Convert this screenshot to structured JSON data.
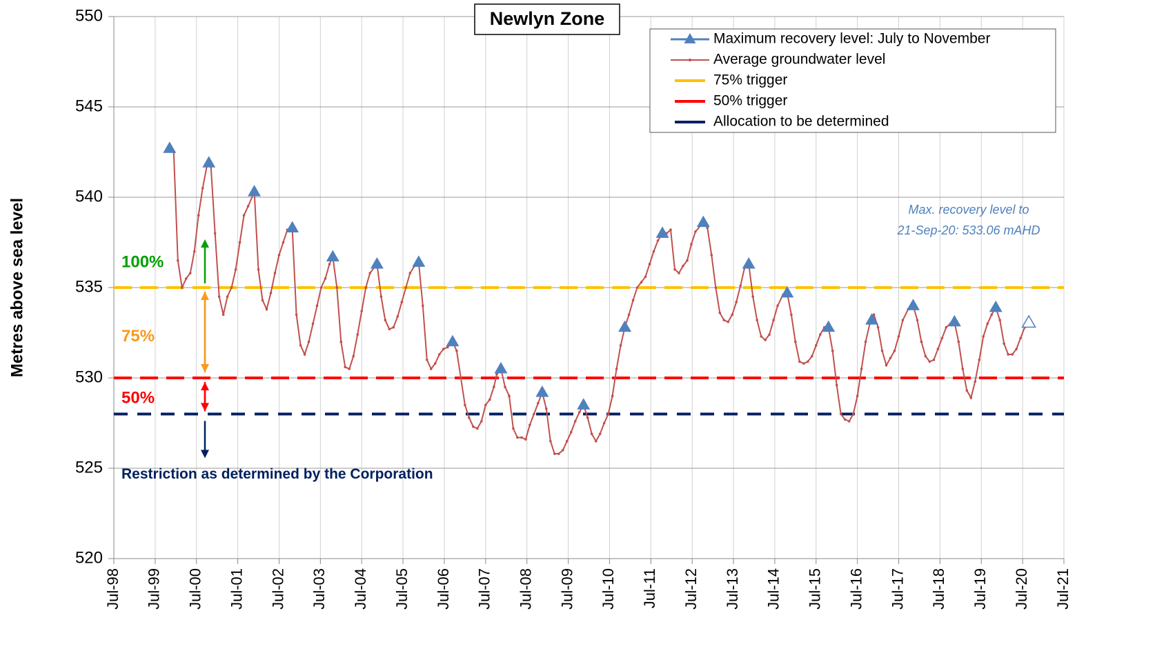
{
  "chart_data": {
    "type": "line",
    "title": "Newlyn Zone",
    "y_label": "Metres above sea level",
    "xlim": [
      1998.5,
      2021.5
    ],
    "xticks": [
      {
        "value": 1998.5,
        "label": "Jul-98"
      },
      {
        "value": 1999.5,
        "label": "Jul-99"
      },
      {
        "value": 2000.5,
        "label": "Jul-00"
      },
      {
        "value": 2001.5,
        "label": "Jul-01"
      },
      {
        "value": 2002.5,
        "label": "Jul-02"
      },
      {
        "value": 2003.5,
        "label": "Jul-03"
      },
      {
        "value": 2004.5,
        "label": "Jul-04"
      },
      {
        "value": 2005.5,
        "label": "Jul-05"
      },
      {
        "value": 2006.5,
        "label": "Jul-06"
      },
      {
        "value": 2007.5,
        "label": "Jul-07"
      },
      {
        "value": 2008.5,
        "label": "Jul-08"
      },
      {
        "value": 2009.5,
        "label": "Jul-09"
      },
      {
        "value": 2010.5,
        "label": "Jul-10"
      },
      {
        "value": 2011.5,
        "label": "Jul-11"
      },
      {
        "value": 2012.5,
        "label": "Jul-12"
      },
      {
        "value": 2013.5,
        "label": "Jul-13"
      },
      {
        "value": 2014.5,
        "label": "Jul-14"
      },
      {
        "value": 2015.5,
        "label": "Jul-15"
      },
      {
        "value": 2016.5,
        "label": "Jul-16"
      },
      {
        "value": 2017.5,
        "label": "Jul-17"
      },
      {
        "value": 2018.5,
        "label": "Jul-18"
      },
      {
        "value": 2019.5,
        "label": "Jul-19"
      },
      {
        "value": 2020.5,
        "label": "Jul-20"
      },
      {
        "value": 2021.5,
        "label": "Jul-21"
      }
    ],
    "ylim": [
      520,
      550
    ],
    "yticks": [
      520,
      525,
      530,
      535,
      540,
      545,
      550
    ],
    "grid": true,
    "legend": "upper right",
    "series": [
      {
        "name": "Maximum recovery level: July to November",
        "color": "#4f81bd",
        "marker": "triangle",
        "x": [
          1999.85,
          2000.8,
          2001.9,
          2002.82,
          2003.8,
          2004.87,
          2005.88,
          2006.7,
          2007.87,
          2008.87,
          2009.87,
          2010.87,
          2011.78,
          2012.77,
          2013.87,
          2014.8,
          2015.8,
          2016.85,
          2017.85,
          2018.85,
          2019.85
        ],
        "values": [
          542.7,
          541.9,
          540.3,
          538.3,
          536.7,
          536.3,
          536.4,
          532.0,
          530.5,
          529.2,
          528.5,
          532.8,
          538.0,
          538.6,
          536.3,
          534.7,
          532.8,
          533.2,
          534.0,
          533.1,
          533.9
        ]
      },
      {
        "name": "Average groundwater level",
        "color": "#c0504d",
        "marker": "line",
        "x": [
          1999.85,
          1999.95,
          2000.05,
          2000.15,
          2000.25,
          2000.35,
          2000.45,
          2000.55,
          2000.65,
          2000.75,
          2000.85,
          2000.95,
          2001.05,
          2001.15,
          2001.25,
          2001.35,
          2001.45,
          2001.55,
          2001.65,
          2001.75,
          2001.9,
          2002.0,
          2002.1,
          2002.2,
          2002.3,
          2002.4,
          2002.5,
          2002.6,
          2002.7,
          2002.82,
          2002.92,
          2003.02,
          2003.12,
          2003.22,
          2003.32,
          2003.42,
          2003.52,
          2003.62,
          2003.72,
          2003.8,
          2003.9,
          2004.0,
          2004.1,
          2004.2,
          2004.3,
          2004.4,
          2004.5,
          2004.6,
          2004.7,
          2004.87,
          2004.97,
          2005.07,
          2005.17,
          2005.27,
          2005.37,
          2005.47,
          2005.57,
          2005.67,
          2005.78,
          2005.88,
          2005.98,
          2006.08,
          2006.18,
          2006.28,
          2006.38,
          2006.48,
          2006.58,
          2006.7,
          2006.8,
          2006.9,
          2007.0,
          2007.1,
          2007.2,
          2007.3,
          2007.4,
          2007.5,
          2007.6,
          2007.7,
          2007.77,
          2007.87,
          2007.97,
          2008.07,
          2008.17,
          2008.27,
          2008.37,
          2008.47,
          2008.57,
          2008.67,
          2008.77,
          2008.87,
          2008.97,
          2009.07,
          2009.17,
          2009.27,
          2009.37,
          2009.47,
          2009.57,
          2009.67,
          2009.77,
          2009.87,
          2009.97,
          2010.07,
          2010.17,
          2010.27,
          2010.37,
          2010.47,
          2010.57,
          2010.67,
          2010.77,
          2010.87,
          2010.97,
          2011.07,
          2011.17,
          2011.27,
          2011.37,
          2011.47,
          2011.57,
          2011.67,
          2011.78,
          2011.88,
          2011.98,
          2012.08,
          2012.18,
          2012.28,
          2012.38,
          2012.48,
          2012.58,
          2012.77,
          2012.87,
          2012.97,
          2013.07,
          2013.17,
          2013.27,
          2013.37,
          2013.47,
          2013.57,
          2013.67,
          2013.77,
          2013.87,
          2013.97,
          2014.07,
          2014.17,
          2014.27,
          2014.37,
          2014.47,
          2014.57,
          2014.7,
          2014.8,
          2014.9,
          2015.0,
          2015.1,
          2015.2,
          2015.3,
          2015.4,
          2015.5,
          2015.6,
          2015.7,
          2015.8,
          2015.9,
          2016.0,
          2016.1,
          2016.2,
          2016.3,
          2016.4,
          2016.5,
          2016.6,
          2016.7,
          2016.8,
          2016.9,
          2017.0,
          2017.1,
          2017.2,
          2017.3,
          2017.4,
          2017.5,
          2017.6,
          2017.73,
          2017.85,
          2017.95,
          2018.05,
          2018.15,
          2018.25,
          2018.35,
          2018.45,
          2018.55,
          2018.65,
          2018.75,
          2018.85,
          2018.95,
          2019.05,
          2019.15,
          2019.25,
          2019.35,
          2019.45,
          2019.55,
          2019.65,
          2019.75,
          2019.85,
          2019.95,
          2020.05,
          2020.15,
          2020.25,
          2020.35,
          2020.45,
          2020.55,
          2020.65
        ],
        "values": [
          542.7,
          542.5,
          536.5,
          535.0,
          535.5,
          535.8,
          537.0,
          539.0,
          540.5,
          541.7,
          541.7,
          538.0,
          534.5,
          533.5,
          534.5,
          535.0,
          536.0,
          537.5,
          539.0,
          539.5,
          540.3,
          536.0,
          534.3,
          533.8,
          534.7,
          535.8,
          536.8,
          537.5,
          538.2,
          538.3,
          533.5,
          531.8,
          531.3,
          532.0,
          533.0,
          534.0,
          535.0,
          535.5,
          536.3,
          536.7,
          535.0,
          532.0,
          530.6,
          530.5,
          531.2,
          532.4,
          533.7,
          535.0,
          535.8,
          536.3,
          534.5,
          533.2,
          532.7,
          532.8,
          533.4,
          534.2,
          535.0,
          535.8,
          536.2,
          536.4,
          534.0,
          531.0,
          530.5,
          530.8,
          531.3,
          531.6,
          531.7,
          532.0,
          531.5,
          530.0,
          528.5,
          527.8,
          527.3,
          527.2,
          527.6,
          528.5,
          528.8,
          529.5,
          530.2,
          530.5,
          529.5,
          529.0,
          527.2,
          526.7,
          526.7,
          526.6,
          527.4,
          528.0,
          528.6,
          529.2,
          528.3,
          526.5,
          525.8,
          525.8,
          526.0,
          526.5,
          527.0,
          527.6,
          528.1,
          528.5,
          527.8,
          526.9,
          526.5,
          526.9,
          527.5,
          528.0,
          529.0,
          530.5,
          531.8,
          532.8,
          533.5,
          534.3,
          535.0,
          535.3,
          535.6,
          536.3,
          537.0,
          537.6,
          538.0,
          538.0,
          538.2,
          536.0,
          535.8,
          536.2,
          536.5,
          537.4,
          538.1,
          538.6,
          538.3,
          536.8,
          535.0,
          533.6,
          533.2,
          533.1,
          533.5,
          534.2,
          535.1,
          536.1,
          536.3,
          534.5,
          533.2,
          532.3,
          532.1,
          532.4,
          533.2,
          534.0,
          534.6,
          534.7,
          533.5,
          532.0,
          530.9,
          530.8,
          530.9,
          531.2,
          531.8,
          532.4,
          532.8,
          532.8,
          531.5,
          529.6,
          528.0,
          527.7,
          527.6,
          528.0,
          529.0,
          530.5,
          532.0,
          533.0,
          533.5,
          532.8,
          531.5,
          530.7,
          531.1,
          531.5,
          532.3,
          533.2,
          533.8,
          534.0,
          533.2,
          532.0,
          531.2,
          530.9,
          531.0,
          531.6,
          532.2,
          532.8,
          533.0,
          533.1,
          532.0,
          530.5,
          529.3,
          528.9,
          529.8,
          531.0,
          532.3,
          533.0,
          533.5,
          533.9,
          533.2,
          531.9,
          531.3,
          531.3,
          531.6,
          532.2,
          532.8,
          533.1
        ]
      }
    ],
    "hlines": [
      {
        "name": "75% trigger",
        "value": 535,
        "color": "#ffc000"
      },
      {
        "name": "50% trigger",
        "value": 530,
        "color": "#ff0000"
      },
      {
        "name": "Allocation to be determined",
        "value": 528,
        "color": "#002060"
      }
    ],
    "zone_labels": [
      {
        "text": "100%",
        "color": "#00a000"
      },
      {
        "text": "75%",
        "color": "#f79a1d"
      },
      {
        "text": "50%",
        "color": "#ff0000"
      },
      {
        "text": "Restriction as determined by the Corporation",
        "color": "#002060"
      }
    ],
    "recovery_note": {
      "lines": [
        "Max. recovery level to",
        "21-Sep-20: 533.06 mAHD"
      ],
      "x": 2020.65,
      "value": 533.06,
      "color": "#4f81bd"
    }
  }
}
